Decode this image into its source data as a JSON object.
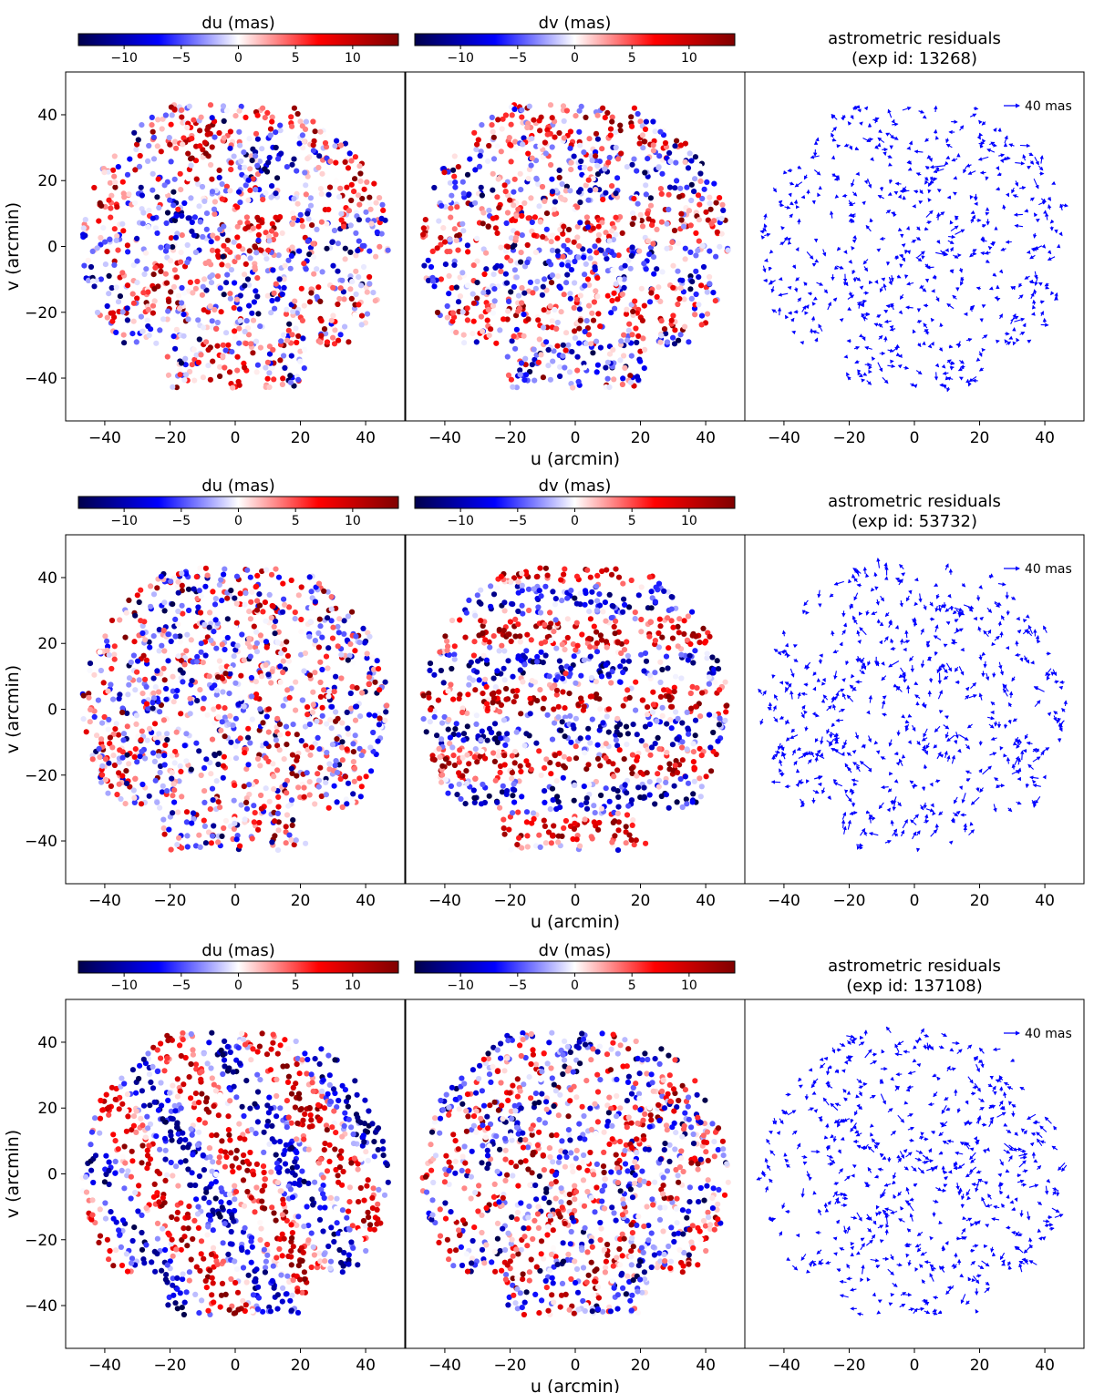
{
  "figure": {
    "ylabel": "v (arcmin)",
    "xlabel": "u (arcmin)",
    "key": {
      "label": "40 mas",
      "length_mas": 40,
      "color": "#0000ff"
    }
  },
  "colormap": {
    "name": "seismic",
    "range": [
      -14,
      14
    ],
    "ticks": [
      -10,
      -5,
      0,
      5,
      10
    ],
    "tick_labels": [
      "−10",
      "−5",
      "0",
      "5",
      "10"
    ],
    "stops": [
      "#00004c",
      "#0000ff",
      "#ffffff",
      "#ff0000",
      "#800000"
    ]
  },
  "axes": {
    "xlim": [
      -52,
      52
    ],
    "ylim": [
      -53,
      53
    ],
    "xticks": [
      -40,
      -20,
      0,
      20,
      40
    ],
    "yticks": [
      -40,
      -20,
      0,
      20,
      40
    ],
    "xtick_labels": [
      "−40",
      "−20",
      "0",
      "20",
      "40"
    ],
    "ytick_labels": [
      "−40",
      "−20",
      "0",
      "20",
      "40"
    ]
  },
  "chart_data": [
    {
      "type": "scatter",
      "exposure_id": 13268,
      "title_line1": "astrometric residuals",
      "title_line2": "(exp id: 13268)",
      "colorbar_labels": [
        "du (mas)",
        "dv (mas)"
      ],
      "footprint": {
        "radius_arcmin": 47,
        "v_cut": 43,
        "notch_u": 22,
        "notch_v": -30
      },
      "du_pattern": "patchy, uncorrelated, roughly −14 to +14 mas",
      "dv_pattern": "patchy with weak horizontal banding",
      "seed": 13268
    },
    {
      "type": "scatter",
      "exposure_id": 53732,
      "title_line1": "astrometric residuals",
      "title_line2": "(exp id: 53732)",
      "colorbar_labels": [
        "du (mas)",
        "dv (mas)"
      ],
      "footprint": {
        "radius_arcmin": 47,
        "v_cut": 43,
        "notch_u": 22,
        "notch_v": -30
      },
      "du_pattern": "mostly random, uncorrelated",
      "dv_pattern": "strong horizontal stripes",
      "seed": 53732
    },
    {
      "type": "scatter",
      "exposure_id": 137108,
      "title_line1": "astrometric residuals",
      "title_line2": "(exp id: 137108)",
      "colorbar_labels": [
        "du (mas)",
        "dv (mas)"
      ],
      "footprint": {
        "radius_arcmin": 47,
        "v_cut": 43,
        "notch_u": 22,
        "notch_v": -30
      },
      "du_pattern": "diagonal stripes",
      "dv_pattern": "diagonal stripes with weaker amplitude",
      "seed": 137108
    }
  ]
}
